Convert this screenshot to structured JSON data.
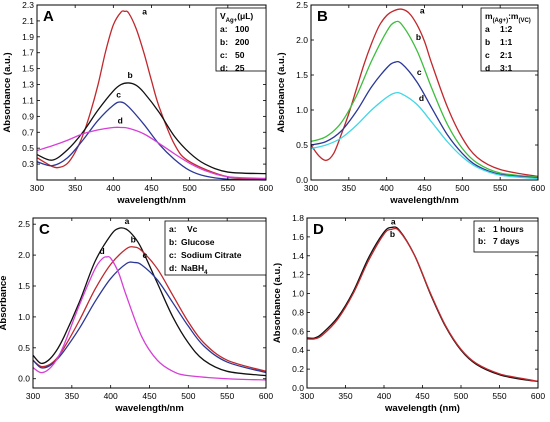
{
  "chart_data": [
    {
      "type": "line",
      "panel": "A",
      "xlabel": "wavelength/nm",
      "ylabel": "Absorbance (a.u.)",
      "xlim": [
        300,
        600
      ],
      "ylim": [
        0.1,
        2.3
      ],
      "xticks": [
        300,
        350,
        400,
        450,
        500,
        550,
        600
      ],
      "yticks": [
        0.3,
        0.5,
        0.7,
        0.9,
        1.1,
        1.3,
        1.5,
        1.7,
        1.9,
        2.1,
        2.3
      ],
      "ytick_labels": [
        "0.3",
        "0.5",
        "0.7",
        "0.9",
        "1.1",
        "1.3",
        "1.5",
        "1.7",
        "1.9",
        "2.1",
        "2.3"
      ],
      "legend": {
        "title_main": "V",
        "title_sub": "Ag+",
        "title_tail": "(μL)",
        "entries": [
          {
            "key": "a:",
            "text": "100"
          },
          {
            "key": "b:",
            "text": "200"
          },
          {
            "key": "c:",
            "text": "50"
          },
          {
            "key": "d:",
            "text": "25"
          }
        ]
      },
      "series": [
        {
          "label": "a",
          "color": "#c0282d",
          "x": [
            300,
            320,
            330,
            340,
            350,
            360,
            370,
            380,
            390,
            400,
            410,
            415,
            420,
            430,
            440,
            450,
            460,
            480,
            500,
            550,
            600
          ],
          "y": [
            0.38,
            0.27,
            0.26,
            0.31,
            0.45,
            0.66,
            0.95,
            1.3,
            1.72,
            2.05,
            2.21,
            2.22,
            2.2,
            2.0,
            1.7,
            1.35,
            1.02,
            0.55,
            0.33,
            0.14,
            0.11
          ]
        },
        {
          "label": "b",
          "color": "#111111",
          "x": [
            300,
            320,
            340,
            360,
            380,
            400,
            410,
            420,
            430,
            440,
            460,
            480,
            500,
            520,
            550,
            600
          ],
          "y": [
            0.42,
            0.35,
            0.48,
            0.7,
            0.98,
            1.22,
            1.3,
            1.32,
            1.29,
            1.2,
            0.95,
            0.65,
            0.44,
            0.3,
            0.2,
            0.18
          ]
        },
        {
          "label": "c",
          "color": "#2b3896",
          "x": [
            300,
            320,
            340,
            360,
            380,
            400,
            410,
            420,
            440,
            460,
            480,
            500,
            520,
            550,
            600
          ],
          "y": [
            0.33,
            0.28,
            0.38,
            0.6,
            0.85,
            1.04,
            1.08,
            1.02,
            0.8,
            0.55,
            0.36,
            0.22,
            0.15,
            0.11,
            0.1
          ]
        },
        {
          "label": "d",
          "color": "#d63fd6",
          "x": [
            300,
            320,
            340,
            360,
            380,
            400,
            410,
            420,
            440,
            460,
            480,
            500,
            520,
            550,
            600
          ],
          "y": [
            0.47,
            0.53,
            0.6,
            0.68,
            0.73,
            0.76,
            0.76,
            0.75,
            0.68,
            0.56,
            0.43,
            0.31,
            0.22,
            0.14,
            0.12
          ]
        }
      ],
      "labels": [
        {
          "text": "a",
          "x": 441,
          "y": 2.18
        },
        {
          "text": "b",
          "x": 422,
          "y": 1.38
        },
        {
          "text": "c",
          "x": 407,
          "y": 1.14
        },
        {
          "text": "d",
          "x": 409,
          "y": 0.81
        }
      ]
    },
    {
      "type": "line",
      "panel": "B",
      "xlabel": "wavelength/nm",
      "ylabel": "Absorbance (a.u.)",
      "xlim": [
        300,
        600
      ],
      "ylim": [
        0.0,
        2.5
      ],
      "xticks": [
        300,
        350,
        400,
        450,
        500,
        550,
        600
      ],
      "yticks": [
        0.0,
        0.5,
        1.0,
        1.5,
        2.0,
        2.5
      ],
      "ytick_labels": [
        "0.0",
        "0.5",
        "1.0",
        "1.5",
        "2.0",
        "2.5"
      ],
      "legend": {
        "title_main": "m",
        "title_sub": "(Ag+)",
        "title_mid": ":m",
        "title_sub2": "(VC)",
        "entries": [
          {
            "key": "a",
            "text": "1:2"
          },
          {
            "key": "b",
            "text": "1:1"
          },
          {
            "key": "c",
            "text": "2:1"
          },
          {
            "key": "d",
            "text": "3:1"
          }
        ]
      },
      "series": [
        {
          "label": "a",
          "color": "#c0282d",
          "x": [
            300,
            310,
            320,
            330,
            340,
            350,
            360,
            370,
            380,
            390,
            400,
            410,
            420,
            430,
            440,
            450,
            460,
            480,
            500,
            520,
            550,
            600
          ],
          "y": [
            0.5,
            0.35,
            0.28,
            0.38,
            0.65,
            0.95,
            1.3,
            1.65,
            1.95,
            2.2,
            2.35,
            2.42,
            2.44,
            2.38,
            2.22,
            1.98,
            1.65,
            1.05,
            0.6,
            0.32,
            0.15,
            0.05
          ]
        },
        {
          "label": "b",
          "color": "#3dbd3d",
          "x": [
            300,
            320,
            340,
            360,
            380,
            400,
            410,
            420,
            440,
            460,
            480,
            500,
            520,
            550,
            600
          ],
          "y": [
            0.55,
            0.62,
            0.82,
            1.2,
            1.7,
            2.12,
            2.25,
            2.22,
            1.85,
            1.3,
            0.8,
            0.45,
            0.24,
            0.1,
            0.04
          ]
        },
        {
          "label": "c",
          "color": "#2b3896",
          "x": [
            300,
            320,
            340,
            360,
            380,
            400,
            410,
            420,
            440,
            460,
            480,
            500,
            520,
            550,
            600
          ],
          "y": [
            0.5,
            0.55,
            0.7,
            0.98,
            1.33,
            1.6,
            1.68,
            1.66,
            1.4,
            1.02,
            0.65,
            0.38,
            0.2,
            0.08,
            0.03
          ]
        },
        {
          "label": "d",
          "color": "#3fd7e6",
          "x": [
            300,
            320,
            340,
            360,
            380,
            400,
            410,
            420,
            440,
            460,
            480,
            500,
            520,
            550,
            600
          ],
          "y": [
            0.45,
            0.5,
            0.6,
            0.78,
            1.0,
            1.18,
            1.24,
            1.23,
            1.08,
            0.82,
            0.55,
            0.33,
            0.18,
            0.07,
            0.02
          ]
        }
      ],
      "labels": [
        {
          "text": "a",
          "x": 447,
          "y": 2.38
        },
        {
          "text": "b",
          "x": 442,
          "y": 2.0
        },
        {
          "text": "c",
          "x": 443,
          "y": 1.5
        },
        {
          "text": "d",
          "x": 446,
          "y": 1.13
        }
      ]
    },
    {
      "type": "line",
      "panel": "C",
      "xlabel": "wavelength/nm",
      "ylabel": "Absorbance",
      "xlim": [
        300,
        600
      ],
      "ylim": [
        -0.15,
        2.6
      ],
      "xticks": [
        300,
        350,
        400,
        450,
        500,
        550,
        600
      ],
      "yticks": [
        0.0,
        0.5,
        1.0,
        1.5,
        2.0,
        2.5
      ],
      "ytick_labels": [
        "0.0",
        "0.5",
        "1.0",
        "1.5",
        "2.0",
        "2.5"
      ],
      "legend": {
        "entries": [
          {
            "key": "a:",
            "text": "Vc"
          },
          {
            "key": "b:",
            "text": "Glucose"
          },
          {
            "key": "c:",
            "text": "Sodium Citrate"
          },
          {
            "key": "d:",
            "text": "NaBH",
            "sub": "4"
          }
        ]
      },
      "series": [
        {
          "label": "a",
          "color": "#111111",
          "x": [
            300,
            310,
            320,
            330,
            340,
            360,
            380,
            400,
            410,
            420,
            430,
            440,
            460,
            480,
            500,
            520,
            550,
            600
          ],
          "y": [
            0.38,
            0.25,
            0.3,
            0.45,
            0.68,
            1.25,
            1.9,
            2.32,
            2.43,
            2.42,
            2.3,
            2.1,
            1.55,
            1.0,
            0.58,
            0.3,
            0.12,
            0.05
          ]
        },
        {
          "label": "b",
          "color": "#c0282d",
          "x": [
            300,
            310,
            320,
            330,
            340,
            360,
            380,
            400,
            420,
            430,
            440,
            460,
            480,
            500,
            520,
            550,
            600
          ],
          "y": [
            0.3,
            0.2,
            0.22,
            0.32,
            0.5,
            0.95,
            1.45,
            1.85,
            2.1,
            2.13,
            2.07,
            1.78,
            1.35,
            0.92,
            0.58,
            0.3,
            0.12
          ]
        },
        {
          "label": "c",
          "color": "#2b3896",
          "x": [
            300,
            310,
            320,
            330,
            340,
            360,
            380,
            400,
            420,
            430,
            440,
            460,
            480,
            500,
            520,
            550,
            600
          ],
          "y": [
            0.3,
            0.18,
            0.2,
            0.3,
            0.45,
            0.82,
            1.25,
            1.62,
            1.86,
            1.88,
            1.84,
            1.6,
            1.23,
            0.85,
            0.53,
            0.27,
            0.1
          ]
        },
        {
          "label": "d",
          "color": "#d63fd6",
          "x": [
            300,
            310,
            320,
            330,
            340,
            360,
            380,
            390,
            395,
            400,
            410,
            420,
            440,
            460,
            480,
            500,
            550,
            600
          ],
          "y": [
            0.18,
            0.1,
            0.15,
            0.3,
            0.55,
            1.2,
            1.78,
            1.95,
            1.97,
            1.95,
            1.72,
            1.35,
            0.68,
            0.3,
            0.12,
            0.05,
            0.0,
            -0.02
          ]
        }
      ],
      "labels": [
        {
          "text": "a",
          "x": 421,
          "y": 2.5
        },
        {
          "text": "b",
          "x": 429,
          "y": 2.2
        },
        {
          "text": "c",
          "x": 444,
          "y": 1.95
        },
        {
          "text": "d",
          "x": 389,
          "y": 2.02
        }
      ]
    },
    {
      "type": "line",
      "panel": "D",
      "xlabel": "wavelength (nm)",
      "ylabel": "Absorbance (a.u.)",
      "xlim": [
        300,
        600
      ],
      "ylim": [
        0.0,
        1.8
      ],
      "xticks": [
        300,
        350,
        400,
        450,
        500,
        550,
        600
      ],
      "yticks": [
        0.0,
        0.2,
        0.4,
        0.6,
        0.8,
        1.0,
        1.2,
        1.4,
        1.6,
        1.8
      ],
      "ytick_labels": [
        "0.0",
        "0.2",
        "0.4",
        "0.6",
        "0.8",
        "1.0",
        "1.2",
        "1.4",
        "1.6",
        "1.8"
      ],
      "legend": {
        "entries": [
          {
            "key": "a:",
            "text": "1 hours"
          },
          {
            "key": "b:",
            "text": "7 days"
          }
        ]
      },
      "series": [
        {
          "label": "a",
          "color": "#111111",
          "x": [
            300,
            310,
            320,
            340,
            360,
            380,
            400,
            410,
            420,
            440,
            460,
            480,
            500,
            520,
            550,
            580,
            600
          ],
          "y": [
            0.53,
            0.53,
            0.58,
            0.75,
            1.02,
            1.38,
            1.65,
            1.7,
            1.67,
            1.4,
            1.0,
            0.65,
            0.4,
            0.25,
            0.14,
            0.09,
            0.07
          ]
        },
        {
          "label": "b",
          "color": "#c0282d",
          "x": [
            300,
            310,
            320,
            340,
            360,
            380,
            400,
            410,
            420,
            440,
            460,
            480,
            500,
            520,
            550,
            580,
            600
          ],
          "y": [
            0.52,
            0.52,
            0.56,
            0.73,
            1.0,
            1.35,
            1.63,
            1.68,
            1.66,
            1.4,
            1.01,
            0.66,
            0.41,
            0.26,
            0.15,
            0.1,
            0.07
          ]
        }
      ],
      "labels": [
        {
          "text": "a",
          "x": 412,
          "y": 1.73
        },
        {
          "text": "b",
          "x": 411,
          "y": 1.6
        }
      ]
    }
  ]
}
